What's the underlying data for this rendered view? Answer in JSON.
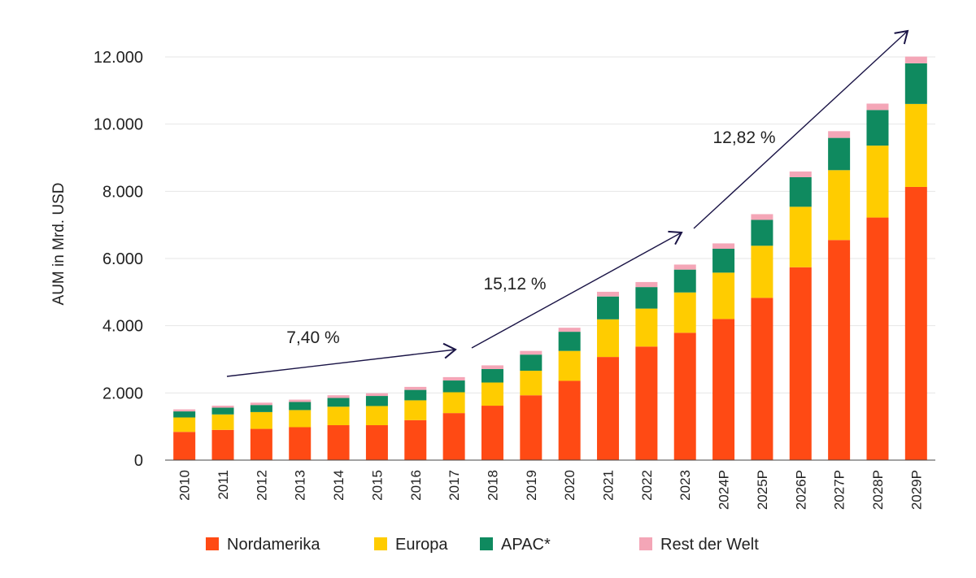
{
  "chart_data": {
    "type": "bar",
    "stacked": true,
    "ylabel": "AUM in Mrd. USD",
    "ylim": [
      0,
      12000
    ],
    "yticks": [
      "0",
      "2.000",
      "4.000",
      "6.000",
      "8.000",
      "10.000",
      "12.000"
    ],
    "ytick_values": [
      0,
      2000,
      4000,
      6000,
      8000,
      10000,
      12000
    ],
    "grid": true,
    "legend_position": "bottom",
    "categories": [
      "2010",
      "2011",
      "2012",
      "2013",
      "2014",
      "2015",
      "2016",
      "2017",
      "2018",
      "2019",
      "2020",
      "2021",
      "2022",
      "2023",
      "2024P",
      "2025P",
      "2026P",
      "2027P",
      "2028P",
      "2029P"
    ],
    "series": [
      {
        "name": "Nordamerika",
        "color": "#ff4a14",
        "values": [
          840,
          900,
          930,
          980,
          1040,
          1040,
          1190,
          1400,
          1620,
          1930,
          2360,
          3070,
          3380,
          3790,
          4200,
          4830,
          5740,
          6550,
          7220,
          8130
        ]
      },
      {
        "name": "Europa",
        "color": "#ffcc00",
        "values": [
          430,
          460,
          500,
          510,
          550,
          570,
          590,
          620,
          690,
          730,
          890,
          1120,
          1130,
          1200,
          1380,
          1550,
          1800,
          2080,
          2140,
          2470
        ]
      },
      {
        "name": "APAC*",
        "color": "#0f8a5f",
        "values": [
          180,
          200,
          210,
          240,
          260,
          300,
          310,
          350,
          400,
          480,
          570,
          680,
          640,
          680,
          710,
          770,
          880,
          960,
          1060,
          1210
        ]
      },
      {
        "name": "Rest der Welt",
        "color": "#f4a6b7",
        "values": [
          60,
          60,
          70,
          70,
          80,
          80,
          90,
          100,
          110,
          110,
          120,
          140,
          150,
          150,
          160,
          170,
          170,
          200,
          190,
          200
        ]
      }
    ],
    "annotations": [
      {
        "text": "7,40 %",
        "from_category": "2011",
        "to_category": "2017"
      },
      {
        "text": "15,12 %",
        "from_category": "2017",
        "to_category": "2023"
      },
      {
        "text": "12,82 %",
        "from_category": "2023",
        "to_category": "2029P"
      }
    ],
    "arrow_color": "#1a1446"
  }
}
